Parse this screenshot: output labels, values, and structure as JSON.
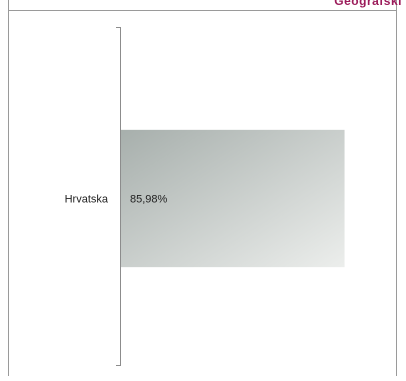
{
  "header": {
    "label": "Geografski",
    "color": "#9b1b5a"
  },
  "chart_data": {
    "type": "bar",
    "orientation": "horizontal",
    "categories": [
      "Hrvatska"
    ],
    "values": [
      85.98
    ],
    "value_labels": [
      "85,98%"
    ],
    "xlim": [
      0,
      100
    ],
    "grid": false,
    "legend": "none",
    "bar_gradient": [
      "#a7afac",
      "#eceeec"
    ]
  }
}
